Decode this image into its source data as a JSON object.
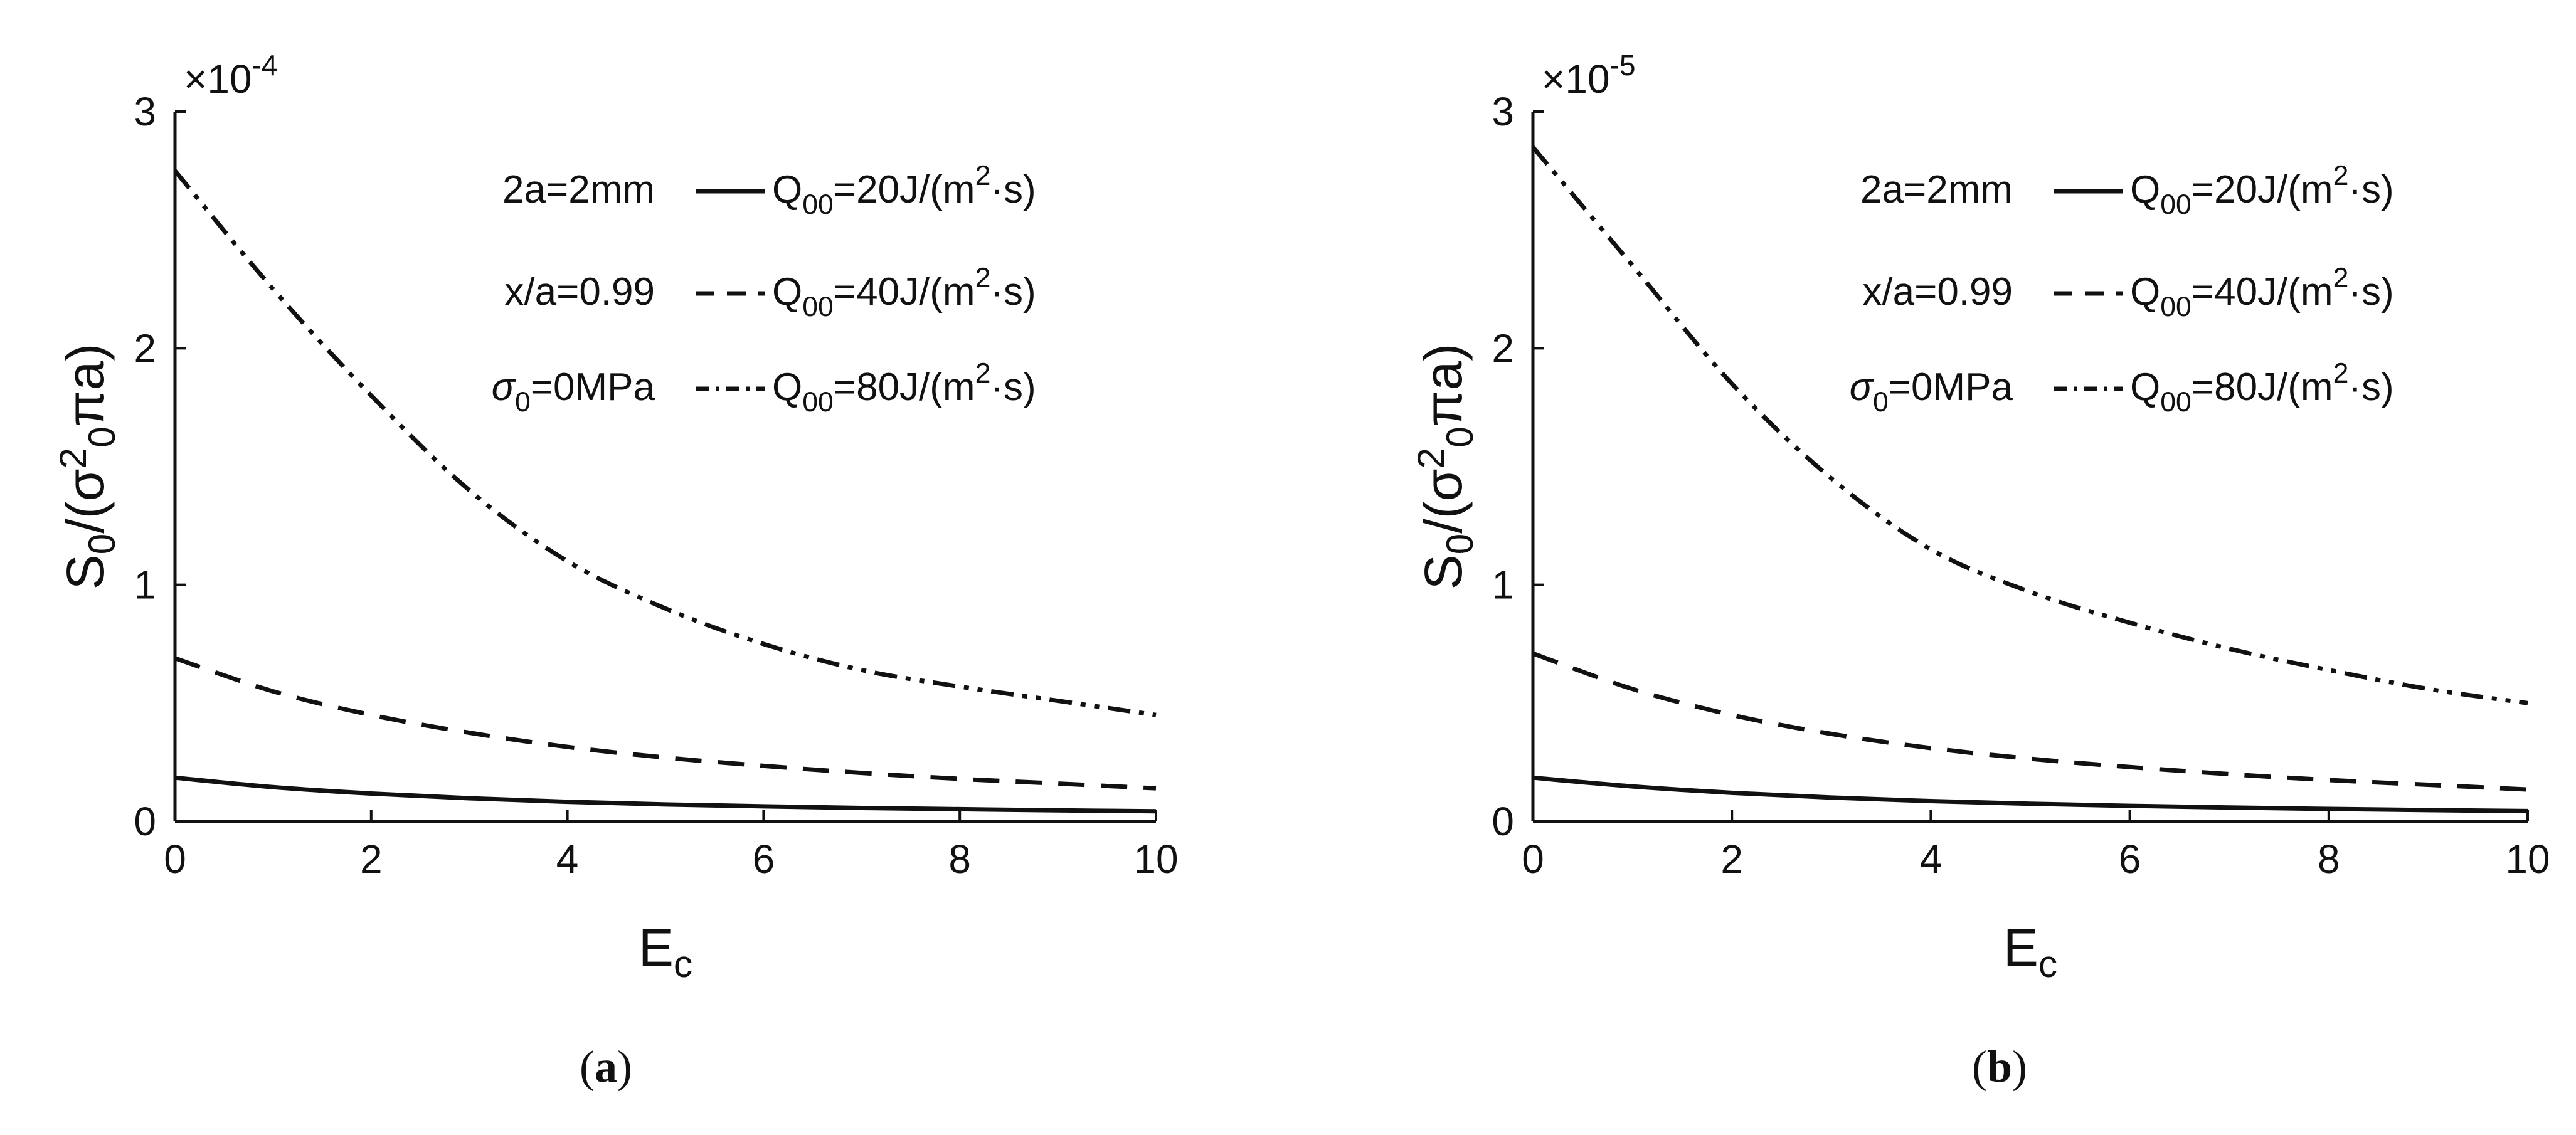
{
  "chart_data": [
    {
      "type": "line",
      "panel_label": "a",
      "x_label": {
        "main": "E",
        "sub": "c"
      },
      "y_label": {
        "main": "S",
        "sub0": "0",
        "mid": "/(σ",
        "sup": "2",
        "sub": "0",
        "tail": "πa)"
      },
      "y_exponent": "×10",
      "y_exponent_power": "-4",
      "xlim": [
        0,
        10
      ],
      "ylim": [
        0,
        3
      ],
      "x_ticks": [
        "0",
        "2",
        "4",
        "6",
        "8",
        "10"
      ],
      "y_ticks": [
        "0",
        "1",
        "2",
        "3"
      ],
      "annotations": {
        "crack": "2a=2mm",
        "position": "x/a=0.99",
        "stress_symbol": "σ",
        "stress_sub": "0",
        "stress_value": "=0MPa"
      },
      "series": [
        {
          "style": "solid",
          "legend": {
            "q": "Q",
            "sub": "00",
            "value": "=20J/(m",
            "sup": "2",
            "tail": "·s)"
          },
          "x": [
            0,
            1,
            2,
            3,
            4,
            5,
            6,
            7,
            8,
            9,
            10
          ],
          "y": [
            0.185,
            0.145,
            0.118,
            0.098,
            0.083,
            0.072,
            0.064,
            0.057,
            0.052,
            0.047,
            0.043
          ]
        },
        {
          "style": "dashed",
          "legend": {
            "q": "Q",
            "sub": "00",
            "value": "=40J/(m",
            "sup": "2",
            "tail": "·s)"
          },
          "x": [
            0,
            1,
            2,
            3,
            4,
            5,
            6,
            7,
            8,
            9,
            10
          ],
          "y": [
            0.69,
            0.55,
            0.45,
            0.375,
            0.315,
            0.27,
            0.235,
            0.205,
            0.18,
            0.16,
            0.14
          ]
        },
        {
          "style": "dashdot",
          "legend": {
            "q": "Q",
            "sub": "00",
            "value": "=80J/(m",
            "sup": "2",
            "tail": "·s)"
          },
          "x": [
            0,
            1,
            2,
            3,
            4,
            5,
            6,
            7,
            8,
            9,
            10
          ],
          "y": [
            2.75,
            2.25,
            1.8,
            1.4,
            1.1,
            0.9,
            0.75,
            0.64,
            0.57,
            0.51,
            0.45
          ]
        }
      ]
    },
    {
      "type": "line",
      "panel_label": "b",
      "x_label": {
        "main": "E",
        "sub": "c"
      },
      "y_label": {
        "main": "S",
        "sub0": "0",
        "mid": "/(σ",
        "sup": "2",
        "sub": "0",
        "tail": "πa)"
      },
      "y_exponent": "×10",
      "y_exponent_power": "-5",
      "xlim": [
        0,
        10
      ],
      "ylim": [
        0,
        3
      ],
      "x_ticks": [
        "0",
        "2",
        "4",
        "6",
        "8",
        "10"
      ],
      "y_ticks": [
        "0",
        "1",
        "2",
        "3"
      ],
      "annotations": {
        "crack": "2a=2mm",
        "position": "x/a=0.99",
        "stress_symbol": "σ",
        "stress_sub": "0",
        "stress_value": "=0MPa"
      },
      "series": [
        {
          "style": "solid",
          "legend": {
            "q": "Q",
            "sub": "00",
            "value": "=20J/(m",
            "sup": "2",
            "tail": "·s)"
          },
          "x": [
            0,
            1,
            2,
            3,
            4,
            5,
            6,
            7,
            8,
            9,
            10
          ],
          "y": [
            0.185,
            0.148,
            0.121,
            0.101,
            0.086,
            0.075,
            0.066,
            0.059,
            0.053,
            0.048,
            0.044
          ]
        },
        {
          "style": "dashed",
          "legend": {
            "q": "Q",
            "sub": "00",
            "value": "=40J/(m",
            "sup": "2",
            "tail": "·s)"
          },
          "x": [
            0,
            1,
            2,
            3,
            4,
            5,
            6,
            7,
            8,
            9,
            10
          ],
          "y": [
            0.71,
            0.56,
            0.45,
            0.37,
            0.31,
            0.265,
            0.23,
            0.2,
            0.175,
            0.155,
            0.135
          ]
        },
        {
          "style": "dashdot",
          "legend": {
            "q": "Q",
            "sub": "00",
            "value": "=80J/(m",
            "sup": "2",
            "tail": "·s)"
          },
          "x": [
            0,
            1,
            2,
            3,
            4,
            5,
            6,
            7,
            8,
            9,
            10
          ],
          "y": [
            2.85,
            2.35,
            1.85,
            1.45,
            1.15,
            0.97,
            0.84,
            0.73,
            0.64,
            0.56,
            0.5
          ]
        }
      ]
    }
  ]
}
